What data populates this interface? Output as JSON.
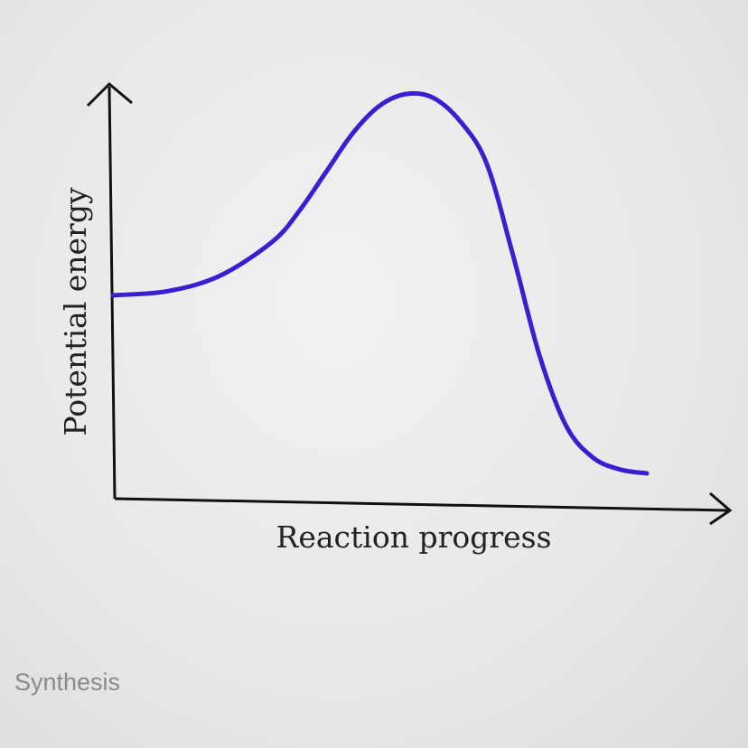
{
  "chart_data": {
    "type": "line",
    "title": "",
    "xlabel": "Reaction progress",
    "ylabel": "Potential energy",
    "grid": false,
    "legend": "none",
    "axis_ticks": false,
    "x": [
      0,
      0.1,
      0.2,
      0.3,
      0.35,
      0.4,
      0.45,
      0.5,
      0.55,
      0.6,
      0.65,
      0.7,
      0.75,
      0.8,
      0.85,
      0.9,
      0.95,
      1.0
    ],
    "y": [
      0.48,
      0.49,
      0.53,
      0.62,
      0.7,
      0.8,
      0.9,
      0.97,
      1.0,
      0.99,
      0.93,
      0.82,
      0.58,
      0.32,
      0.14,
      0.06,
      0.03,
      0.02
    ],
    "series_color": "#3a1fd0"
  },
  "footer": {
    "label": "Synthesis"
  }
}
